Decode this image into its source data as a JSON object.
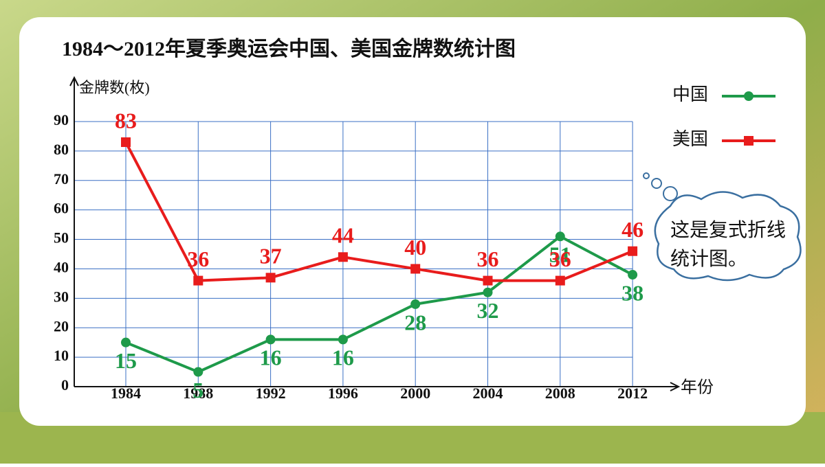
{
  "chart_data": {
    "type": "line",
    "title": "1984～2012年夏季奥运会中国、美国金牌数统计图",
    "y_label": "金牌数(枚)",
    "x_label": "年份",
    "categories": [
      "1984",
      "1988",
      "1992",
      "1996",
      "2000",
      "2004",
      "2008",
      "2012"
    ],
    "series": [
      {
        "name": "中国",
        "color": "#1e9a4a",
        "marker": "circle",
        "values": [
          15,
          5,
          16,
          16,
          28,
          32,
          51,
          38
        ]
      },
      {
        "name": "美国",
        "color": "#e81c1c",
        "marker": "square",
        "values": [
          83,
          36,
          37,
          44,
          40,
          36,
          36,
          46
        ]
      }
    ],
    "ylim": [
      0,
      90
    ],
    "yticks": [
      0,
      10,
      20,
      30,
      40,
      50,
      60,
      70,
      80,
      90
    ],
    "grid": true,
    "legend": "right",
    "annotation": "这是复式折线统计图。"
  }
}
